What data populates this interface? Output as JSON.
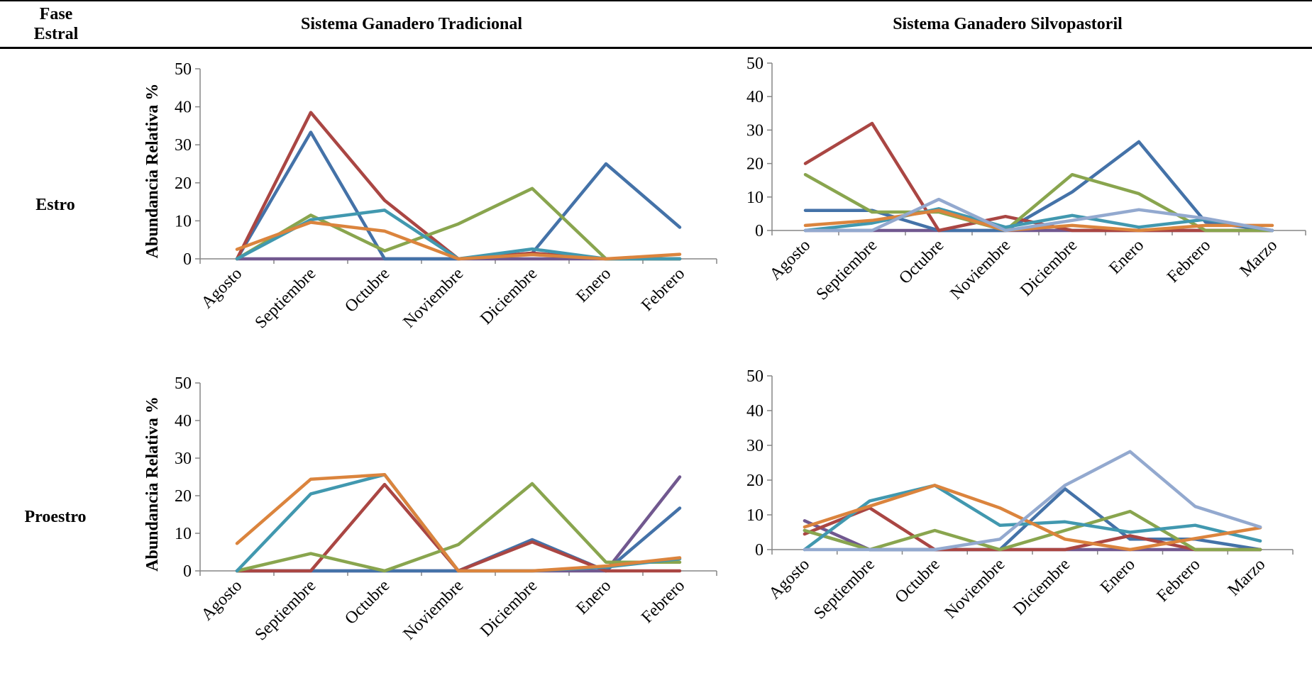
{
  "header": {
    "col_phase": "Fase\nEstral",
    "col_traditional": "Sistema Ganadero Tradicional",
    "col_silvo": "Sistema Ganadero Silvopastoril"
  },
  "rows": {
    "estro": "Estro",
    "proestro": "Proestro"
  },
  "colors": {
    "blue": "#4472A8",
    "red": "#AA4643",
    "green": "#89A54E",
    "purple": "#71588F",
    "teal": "#4198AF",
    "orange": "#DB843D",
    "lightblue": "#93A9CF"
  },
  "chart_data": [
    {
      "id": "estro-tradicional",
      "type": "line",
      "ylabel": "Abundancia Relativa %",
      "ylim": [
        0,
        50
      ],
      "yticks": [
        0,
        10,
        20,
        30,
        40,
        50
      ],
      "categories": [
        "Agosto",
        "Septiembre",
        "Octubre",
        "Noviembre",
        "Diciembre",
        "Enero",
        "Febrero"
      ],
      "series": [
        {
          "color": "purple",
          "values": [
            0,
            0,
            0,
            0,
            0,
            0,
            0
          ]
        },
        {
          "color": "blue",
          "values": [
            0,
            33.3,
            0,
            0,
            1.5,
            25,
            8.3
          ]
        },
        {
          "color": "red",
          "values": [
            0,
            38.5,
            15.4,
            0,
            1.5,
            0,
            0
          ]
        },
        {
          "color": "green",
          "values": [
            0,
            11.5,
            2.1,
            9.2,
            18.5,
            0,
            0
          ]
        },
        {
          "color": "teal",
          "values": [
            0,
            10.3,
            12.8,
            0,
            2.6,
            0,
            0
          ]
        },
        {
          "color": "orange",
          "values": [
            2.5,
            9.6,
            7.3,
            0,
            1.1,
            0,
            1.2
          ]
        }
      ]
    },
    {
      "id": "estro-silvopastoril",
      "type": "line",
      "ylabel": "",
      "ylim": [
        0,
        50
      ],
      "yticks": [
        0,
        10,
        20,
        30,
        40,
        50
      ],
      "categories": [
        "Agosto",
        "Septiembre",
        "Octubre",
        "Noviembre",
        "Diciembre",
        "Enero",
        "Febrero",
        "Marzo"
      ],
      "series": [
        {
          "color": "purple",
          "values": [
            0,
            0,
            0,
            0,
            0,
            0,
            0,
            0
          ]
        },
        {
          "color": "blue",
          "values": [
            6,
            6,
            0,
            0,
            11.5,
            26.5,
            2.5,
            0
          ]
        },
        {
          "color": "red",
          "values": [
            20,
            32,
            0,
            4.2,
            0,
            0,
            0,
            0
          ]
        },
        {
          "color": "green",
          "values": [
            16.7,
            5.5,
            5.5,
            0,
            16.7,
            11,
            0,
            0
          ]
        },
        {
          "color": "teal",
          "values": [
            0,
            2.2,
            6.5,
            1,
            4.5,
            1,
            3.3,
            0
          ]
        },
        {
          "color": "orange",
          "values": [
            1.5,
            3,
            6,
            0,
            1.5,
            0,
            1.5,
            1.5
          ]
        },
        {
          "color": "lightblue",
          "values": [
            0,
            0,
            9.3,
            0,
            3,
            6.2,
            3.6,
            0
          ]
        }
      ]
    },
    {
      "id": "proestro-tradicional",
      "type": "line",
      "ylabel": "Abundancia Relativa %",
      "ylim": [
        0,
        50
      ],
      "yticks": [
        0,
        10,
        20,
        30,
        40,
        50
      ],
      "categories": [
        "Agosto",
        "Septiembre",
        "Octubre",
        "Noviembre",
        "Diciembre",
        "Enero",
        "Febrero"
      ],
      "series": [
        {
          "color": "purple",
          "values": [
            0,
            0,
            0,
            0,
            0,
            0,
            25
          ]
        },
        {
          "color": "blue",
          "values": [
            0,
            0,
            0,
            0,
            8.3,
            0,
            16.7
          ]
        },
        {
          "color": "red",
          "values": [
            0,
            0,
            23,
            0,
            7.7,
            0,
            0
          ]
        },
        {
          "color": "green",
          "values": [
            0,
            4.6,
            0,
            7,
            23.2,
            2.3,
            2.3
          ]
        },
        {
          "color": "teal",
          "values": [
            0,
            20.5,
            25.6,
            0,
            0,
            1,
            3.2
          ]
        },
        {
          "color": "orange",
          "values": [
            7.3,
            24.4,
            25.6,
            0,
            0,
            1.3,
            3.5
          ]
        }
      ]
    },
    {
      "id": "proestro-silvopastoril",
      "type": "line",
      "ylabel": "",
      "ylim": [
        0,
        50
      ],
      "yticks": [
        0,
        10,
        20,
        30,
        40,
        50
      ],
      "categories": [
        "Agosto",
        "Septiembre",
        "Octubre",
        "Noviembre",
        "Diciembre",
        "Enero",
        "Febrero",
        "Marzo"
      ],
      "series": [
        {
          "color": "purple",
          "values": [
            8.3,
            0,
            0,
            0,
            0,
            0,
            0,
            0
          ]
        },
        {
          "color": "blue",
          "values": [
            5.5,
            0,
            0,
            0,
            17.5,
            3,
            3,
            0
          ]
        },
        {
          "color": "red",
          "values": [
            4.5,
            12,
            0,
            0,
            0,
            4,
            0,
            0
          ]
        },
        {
          "color": "green",
          "values": [
            5.5,
            0,
            5.5,
            0,
            5.5,
            11,
            0,
            0
          ]
        },
        {
          "color": "teal",
          "values": [
            0,
            14,
            18.5,
            7,
            8,
            5,
            7,
            2.5
          ]
        },
        {
          "color": "orange",
          "values": [
            6.5,
            12.5,
            18.5,
            12,
            3,
            0,
            3.2,
            6.3
          ]
        },
        {
          "color": "lightblue",
          "values": [
            0,
            0,
            0,
            3,
            18.5,
            28.2,
            12.4,
            6.5
          ]
        }
      ]
    }
  ]
}
